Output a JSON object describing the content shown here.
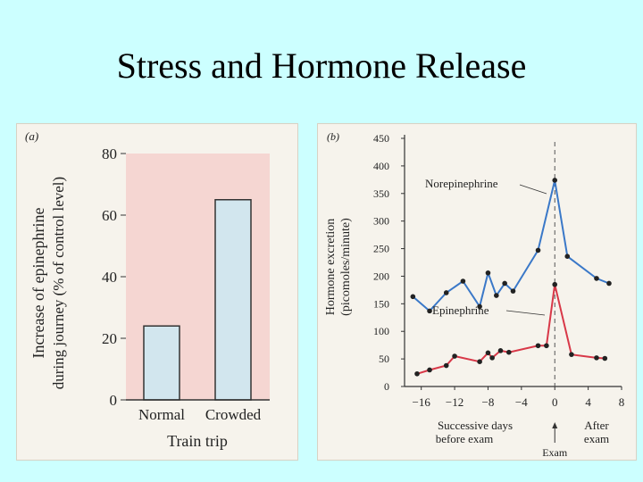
{
  "slide": {
    "title": "Stress and Hormone Release"
  },
  "chart_data": [
    {
      "type": "bar",
      "panel_label": "(a)",
      "categories": [
        "Normal",
        "Crowded"
      ],
      "values": [
        24,
        65
      ],
      "xlabel": "Train trip",
      "ylabel_line1": "Increase of epinephrine",
      "ylabel_line2": "during journey (% of control level)",
      "ylim": [
        0,
        80
      ],
      "yticks": [
        0,
        20,
        40,
        60,
        80
      ],
      "colors": {
        "plot_bg": "#f5d6d2",
        "bar_fill": "#d2e6ee",
        "bar_stroke": "#333333"
      }
    },
    {
      "type": "line",
      "panel_label": "(b)",
      "ylabel_line1": "Hormone excretion",
      "ylabel_line2": "(picomoles/minute)",
      "ylim": [
        0,
        450
      ],
      "yticks": [
        0,
        50,
        100,
        150,
        200,
        250,
        300,
        350,
        400,
        450
      ],
      "xlim": [
        -18,
        8
      ],
      "xticks": [
        -16,
        -12,
        -8,
        -4,
        0,
        4,
        8
      ],
      "xtick_labels": [
        "−16",
        "−12",
        "−8",
        "−4",
        "0",
        "4",
        "8"
      ],
      "x_caption_before_line1": "Successive days",
      "x_caption_before_line2": "before exam",
      "x_caption_after_line1": "After",
      "x_caption_after_line2": "exam",
      "exam_label": "Exam",
      "series": [
        {
          "name": "Norepinephrine",
          "color": "#3a78c8",
          "x": [
            -17,
            -15,
            -13,
            -11,
            -9,
            -8,
            -7,
            -6,
            -5,
            -2,
            0,
            1.5,
            5,
            6.5
          ],
          "y": [
            163,
            137,
            170,
            191,
            145,
            206,
            165,
            187,
            173,
            247,
            374,
            236,
            196,
            187
          ]
        },
        {
          "name": "Epinephrine",
          "color": "#d83848",
          "x": [
            -16.5,
            -15,
            -13,
            -12,
            -9,
            -8,
            -7.5,
            -6.5,
            -5.5,
            -2,
            -1,
            0,
            2,
            5,
            6
          ],
          "y": [
            23,
            30,
            38,
            55,
            45,
            61,
            52,
            65,
            62,
            74,
            74,
            185,
            58,
            52,
            51
          ]
        }
      ]
    }
  ]
}
